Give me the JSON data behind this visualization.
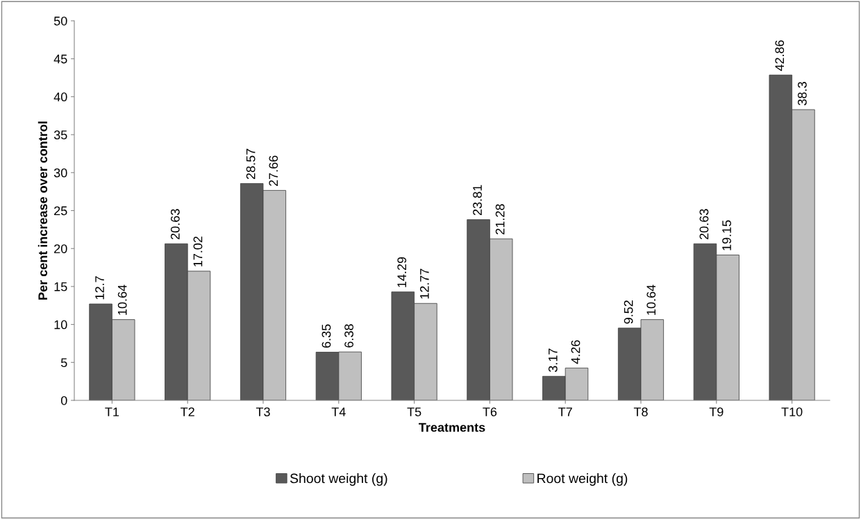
{
  "chart_data": {
    "type": "bar",
    "xlabel": "Treatments",
    "ylabel": "Per cent increase over control",
    "categories": [
      "T1",
      "T2",
      "T3",
      "T4",
      "T5",
      "T6",
      "T7",
      "T8",
      "T9",
      "T10"
    ],
    "series": [
      {
        "name": "Shoot weight (g)",
        "color": "#595959",
        "values": [
          12.7,
          20.63,
          28.57,
          6.35,
          14.29,
          23.81,
          3.17,
          9.52,
          20.63,
          42.86
        ]
      },
      {
        "name": "Root weight (g)",
        "color": "#bfbfbf",
        "values": [
          10.64,
          17.02,
          27.66,
          6.38,
          12.77,
          21.28,
          4.26,
          10.64,
          19.15,
          38.3
        ]
      }
    ],
    "ylim": [
      0,
      50
    ],
    "yticks": [
      0,
      5,
      10,
      15,
      20,
      25,
      30,
      35,
      40,
      45,
      50
    ],
    "data_labels": true,
    "grid": false,
    "legend": "bottom"
  }
}
